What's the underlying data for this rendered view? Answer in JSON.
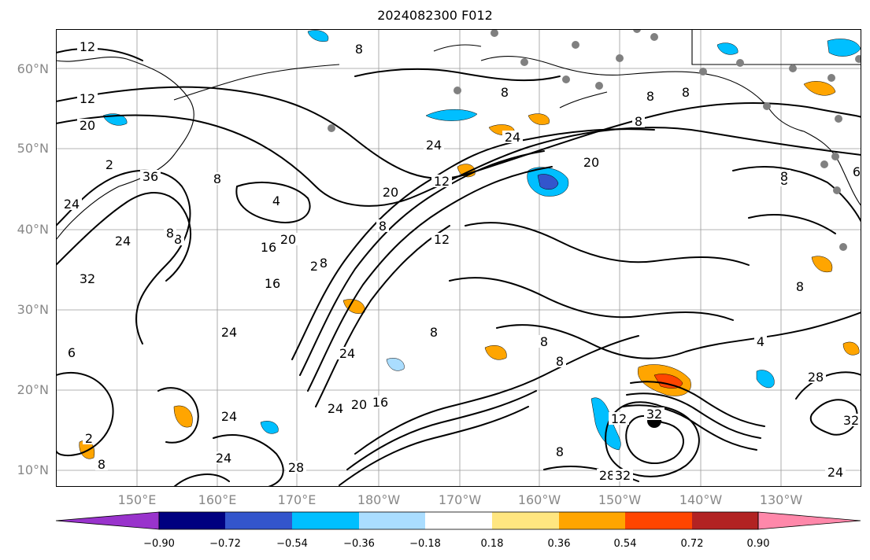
{
  "title": "2024082300 F012",
  "map": {
    "latitude_labels": [
      "60°N",
      "50°N",
      "40°N",
      "30°N",
      "20°N",
      "10°N"
    ],
    "longitude_labels": [
      "150°E",
      "160°E",
      "170°E",
      "180°W",
      "170°W",
      "160°W",
      "150°W",
      "140°W",
      "130°W"
    ],
    "contour_labels": [
      "12",
      "8",
      "8",
      "8",
      "20",
      "8",
      "12",
      "24",
      "2",
      "36",
      "4",
      "20",
      "24",
      "12",
      "20",
      "6",
      "8",
      "24",
      "8",
      "16",
      "20",
      "8",
      "2",
      "16",
      "6",
      "24",
      "24",
      "24",
      "8",
      "8",
      "4",
      "8",
      "32",
      "12",
      "28",
      "24",
      "20",
      "24",
      "16",
      "28",
      "32",
      "28",
      "32",
      "24",
      "2",
      "8",
      "8",
      "32",
      "8",
      "8",
      "8",
      "32",
      "8",
      "12",
      "24",
      "8",
      "8"
    ],
    "colors": {
      "contour": "#000000",
      "grid": "#9a9a9a",
      "coast": "#000000",
      "station_dot": "#808080",
      "storm_center": "#000000"
    }
  },
  "colorbar": {
    "tick_labels": [
      "−0.90",
      "−0.72",
      "−0.54",
      "−0.36",
      "−0.18",
      "0.18",
      "0.36",
      "0.54",
      "0.72",
      "0.90"
    ],
    "colors": [
      "#9933cc",
      "#000080",
      "#3355cc",
      "#00bfff",
      "#aaddff",
      "#ffffff",
      "#ffe680",
      "#ffa500",
      "#ff4500",
      "#b22222",
      "#ff88aa"
    ]
  }
}
